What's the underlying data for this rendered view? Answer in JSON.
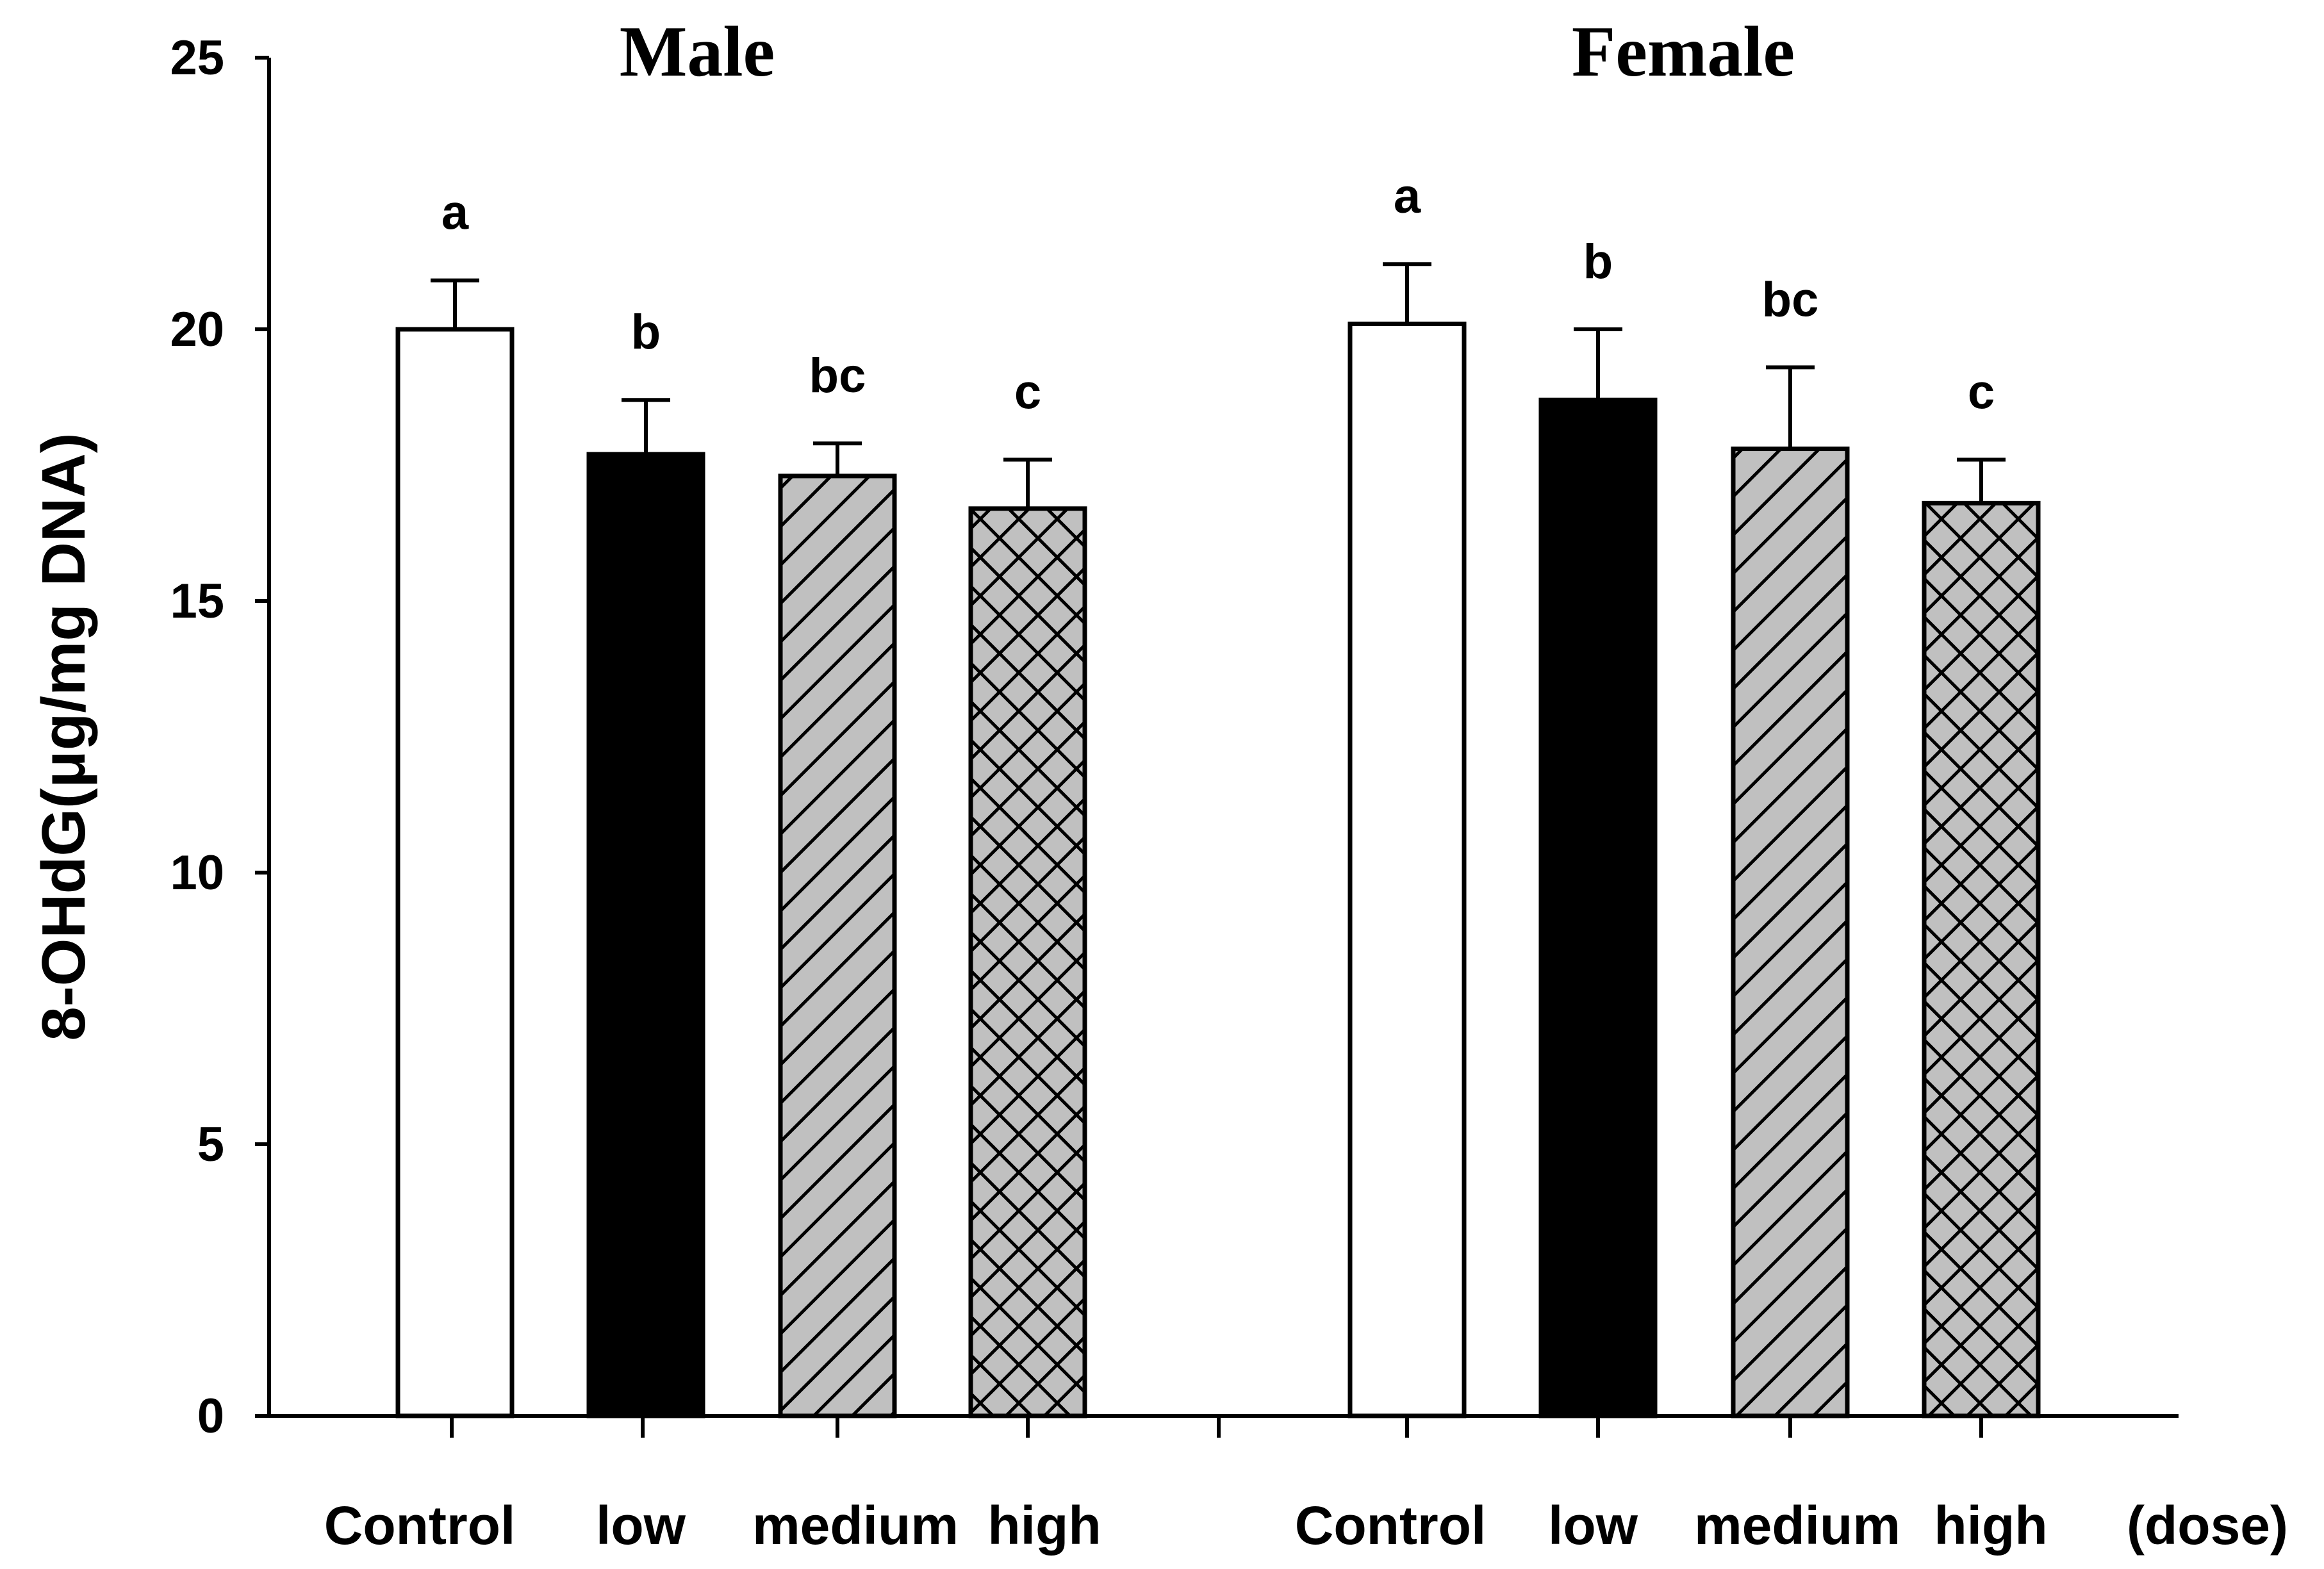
{
  "chart_data": {
    "type": "bar",
    "ylabel": "8-OHdG(μg/mg DNA)",
    "ylim": [
      0,
      25
    ],
    "yticks": [
      0,
      5,
      10,
      15,
      20,
      25
    ],
    "grid": false,
    "legend": "none",
    "dose_label": "(dose)",
    "groups": [
      {
        "title": "Male",
        "bars": [
          {
            "label": "Control",
            "value": 20.0,
            "error": 0.9,
            "sig": "a",
            "pattern": "white"
          },
          {
            "label": "low",
            "value": 17.7,
            "error": 1.0,
            "sig": "b",
            "pattern": "black"
          },
          {
            "label": "medium",
            "value": 17.3,
            "error": 0.6,
            "sig": "bc",
            "pattern": "diagonal"
          },
          {
            "label": "high",
            "value": 16.7,
            "error": 0.9,
            "sig": "c",
            "pattern": "crosshatch"
          }
        ]
      },
      {
        "title": "Female",
        "bars": [
          {
            "label": "Control",
            "value": 20.1,
            "error": 1.1,
            "sig": "a",
            "pattern": "white"
          },
          {
            "label": "low",
            "value": 18.7,
            "error": 1.3,
            "sig": "b",
            "pattern": "black"
          },
          {
            "label": "medium",
            "value": 17.8,
            "error": 1.5,
            "sig": "bc",
            "pattern": "diagonal"
          },
          {
            "label": "high",
            "value": 16.8,
            "error": 0.8,
            "sig": "c",
            "pattern": "crosshatch"
          }
        ]
      }
    ],
    "colors": {
      "bar_outline": "#000000",
      "pattern_fill": "#c0c0c0",
      "solid_fill": "#000000",
      "open_fill": "#ffffff"
    }
  }
}
